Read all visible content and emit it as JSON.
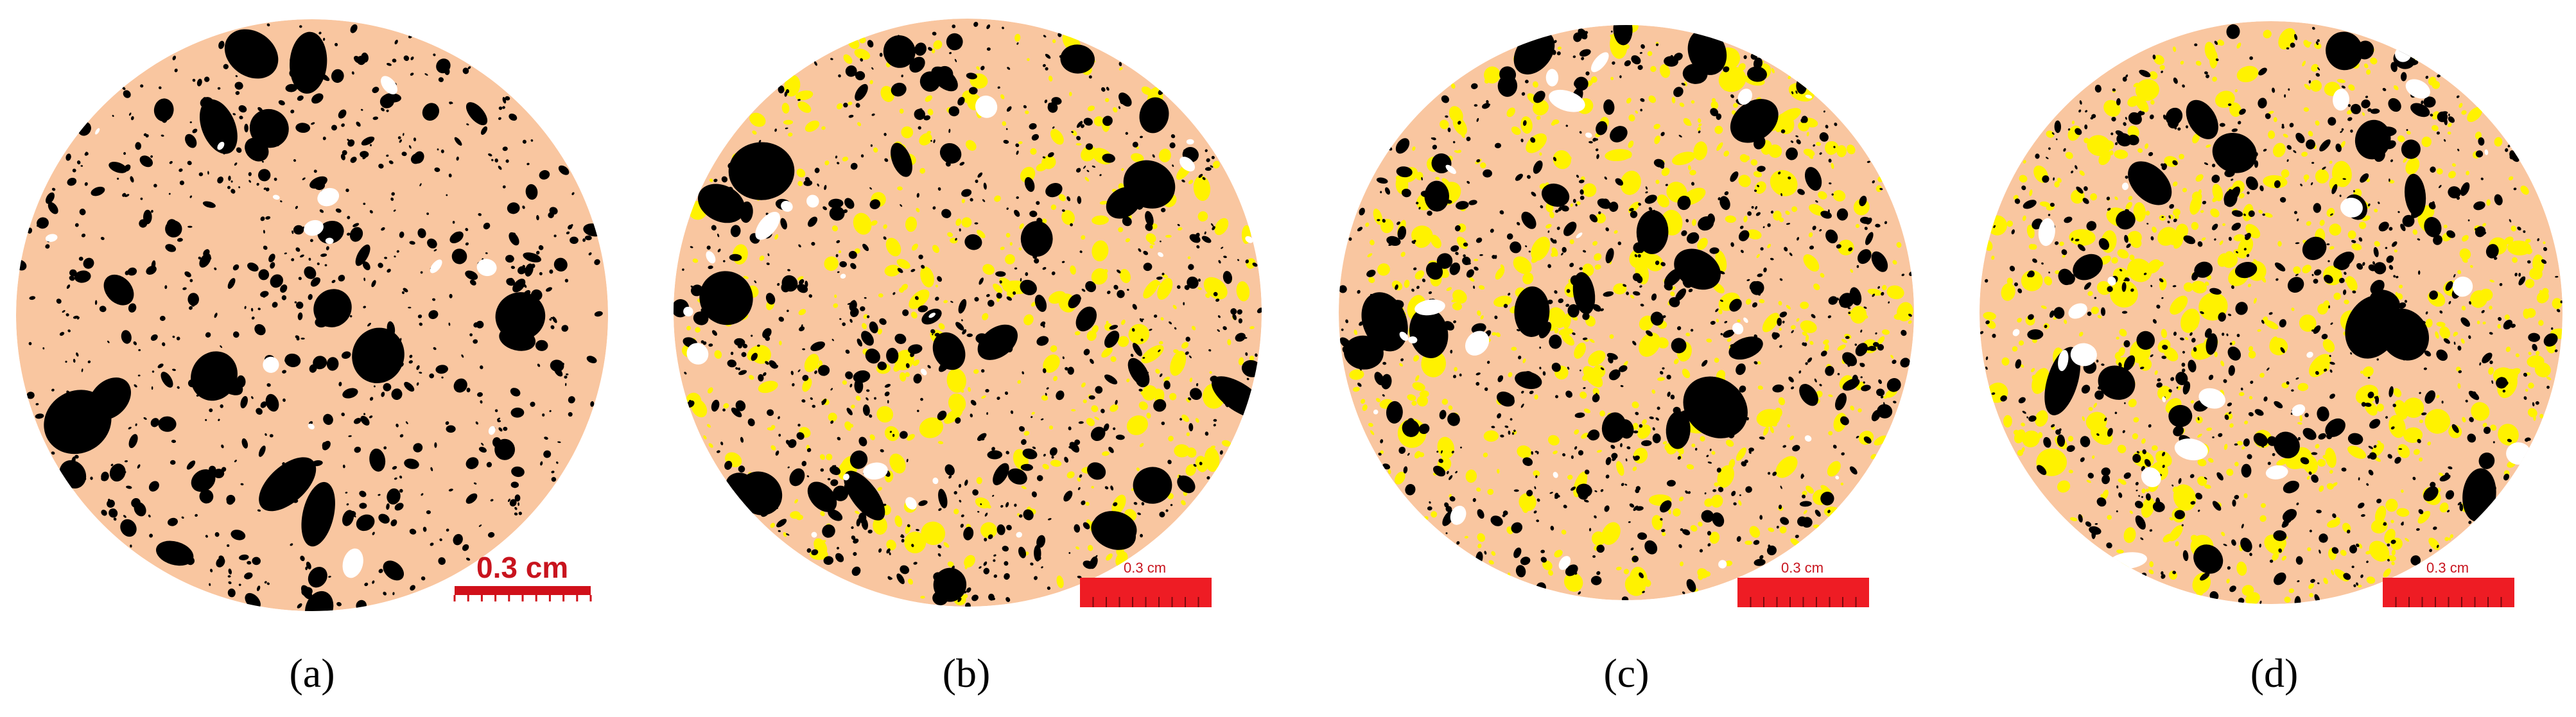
{
  "panels": [
    {
      "label": "(a)",
      "scale_bar": "0.3 cm"
    },
    {
      "label": "(b)",
      "scale_bar": "0.3 cm"
    },
    {
      "label": "(c)",
      "scale_bar": "0.3 cm"
    },
    {
      "label": "(d)",
      "scale_bar": "0.3 cm"
    }
  ]
}
